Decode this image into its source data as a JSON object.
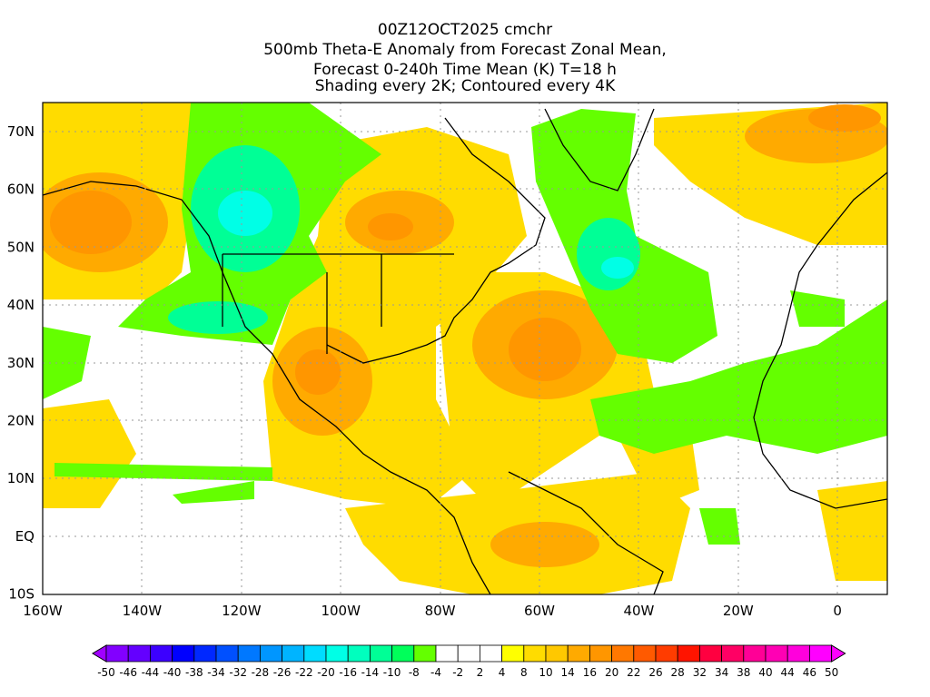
{
  "title": {
    "line1": "00Z12OCT2025 cmchr",
    "line2": "500mb Theta-E Anomaly from Forecast Zonal Mean,",
    "line3": "Forecast 0-240h Time Mean (K) T=18 h",
    "line4": "Shading every 2K; Contoured every 4K"
  },
  "map": {
    "lon_labels": [
      "160W",
      "140W",
      "120W",
      "100W",
      "80W",
      "60W",
      "40W",
      "20W",
      "0"
    ],
    "lat_labels": [
      "70N",
      "60N",
      "50N",
      "40N",
      "30N",
      "20N",
      "10N",
      "EQ",
      "10S"
    ]
  },
  "colorbar": {
    "labels": [
      "-50",
      "-46",
      "-44",
      "-40",
      "-38",
      "-34",
      "-32",
      "-28",
      "-26",
      "-22",
      "-20",
      "-16",
      "-14",
      "-10",
      "-8",
      "-4",
      "-2",
      "2",
      "4",
      "8",
      "10",
      "14",
      "16",
      "20",
      "22",
      "26",
      "28",
      "32",
      "34",
      "38",
      "40",
      "44",
      "46",
      "50"
    ],
    "colors": [
      "#8200ff",
      "#6400ff",
      "#3c00ff",
      "#0000ff",
      "#0028ff",
      "#0050ff",
      "#0078ff",
      "#0096ff",
      "#00b4ff",
      "#00dcff",
      "#00ffe6",
      "#00ffbe",
      "#00ff96",
      "#00ff5a",
      "#64ff00",
      "#ffffff",
      "#ffffff",
      "#ffffff",
      "#ffff00",
      "#ffdc00",
      "#ffc800",
      "#ffaa00",
      "#ff9600",
      "#ff7800",
      "#ff5a00",
      "#ff3c00",
      "#ff1400",
      "#ff0040",
      "#ff0064",
      "#ff0096",
      "#ff00b4",
      "#ff00dc",
      "#ff00ff"
    ],
    "low_end_color": "#a000ff",
    "high_end_color": "#ff00ff"
  }
}
